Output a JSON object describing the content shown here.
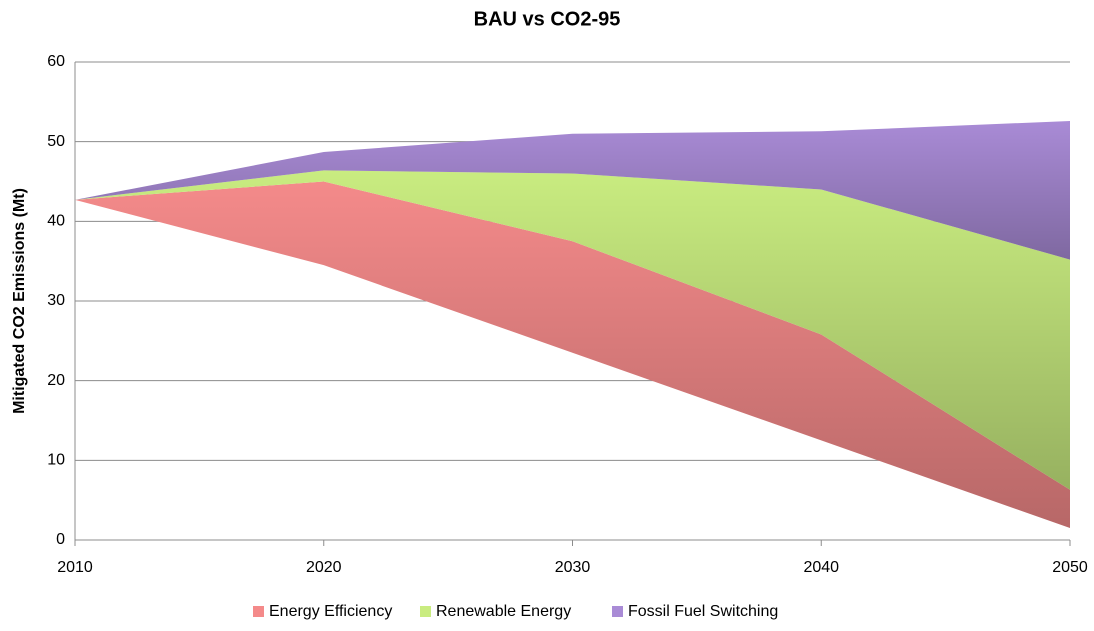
{
  "chart_data": {
    "type": "stacked_area",
    "title": "BAU vs CO2-95",
    "y_label": "Mitigated CO2 Emissions (Mt)",
    "x": [
      2010,
      2020,
      2030,
      2040,
      2050
    ],
    "baseline": [
      42.7,
      34.5,
      23.5,
      12.5,
      1.5
    ],
    "series": [
      {
        "name": "Energy Efficiency",
        "color": "#f48a8a",
        "values": [
          0,
          10.5,
          14,
          13.3,
          4.8
        ]
      },
      {
        "name": "Renewable Energy",
        "color": "#c9ec80",
        "values": [
          0,
          1.4,
          8.5,
          18.2,
          28.9
        ]
      },
      {
        "name": "Fossil Fuel Switching",
        "color": "#a98bd6",
        "values": [
          0,
          2.3,
          5,
          7.3,
          17.4
        ]
      }
    ],
    "xlim": [
      2010,
      2050
    ],
    "xticks": [
      2010,
      2020,
      2030,
      2040,
      2050
    ],
    "ylim": [
      0,
      60
    ],
    "yticks": [
      0,
      10,
      20,
      30,
      40,
      50,
      60
    ],
    "grid": true,
    "legend": "bottom"
  }
}
